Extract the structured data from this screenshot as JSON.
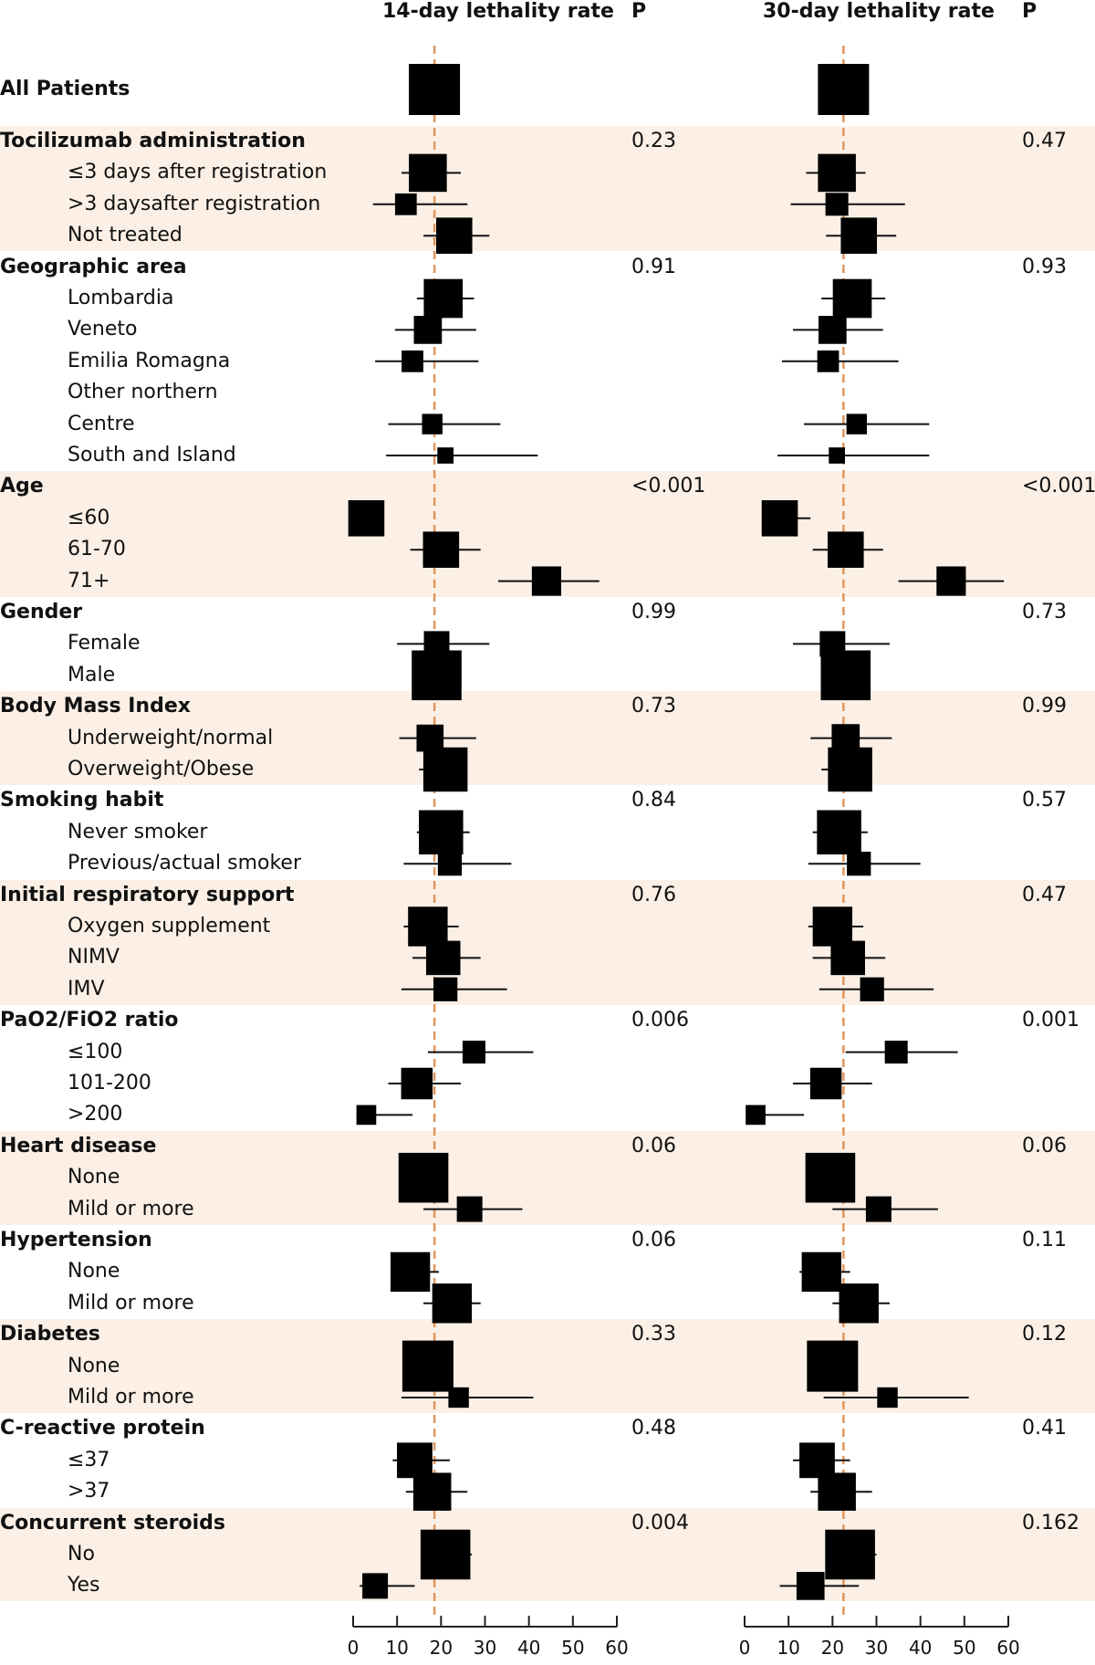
{
  "chart_data": {
    "type": "forest",
    "panels": [
      {
        "title": "14-day lethality rate",
        "p_header": "P",
        "xlim": [
          0,
          60
        ],
        "xticks": [
          0,
          10,
          20,
          30,
          40,
          50,
          60
        ],
        "reference_line": 18.5
      },
      {
        "title": "30-day lethality rate",
        "p_header": "P",
        "xlim": [
          0,
          60
        ],
        "xticks": [
          0,
          10,
          20,
          30,
          40,
          50,
          60
        ],
        "reference_line": 22.5
      }
    ],
    "rows": [
      {
        "label": "All Patients",
        "kind": "header",
        "band": false,
        "est": [
          18.5,
          22.5
        ],
        "lo": [
          18.5,
          22.5
        ],
        "hi": [
          18.5,
          22.5
        ],
        "weight": [
          1.0,
          1.0
        ],
        "p": [
          "",
          ""
        ]
      },
      {
        "label": "Tocilizumab administration",
        "kind": "header",
        "band": true,
        "p": [
          "0.23",
          "0.47"
        ]
      },
      {
        "label": "≤3 days after registration",
        "kind": "sub",
        "band": true,
        "est": [
          17,
          21
        ],
        "lo": [
          11,
          14
        ],
        "hi": [
          24.5,
          27.5
        ],
        "weight": [
          0.55,
          0.55
        ]
      },
      {
        "label": ">3 daysafter registration",
        "kind": "sub",
        "band": true,
        "est": [
          12,
          21
        ],
        "lo": [
          4.5,
          10.5
        ],
        "hi": [
          26,
          36.5
        ],
        "weight": [
          0.18,
          0.2
        ]
      },
      {
        "label": "Not treated",
        "kind": "sub",
        "band": true,
        "est": [
          23,
          26
        ],
        "lo": [
          16,
          18.5
        ],
        "hi": [
          31,
          34.5
        ],
        "weight": [
          0.5,
          0.5
        ]
      },
      {
        "label": "Geographic area",
        "kind": "header",
        "band": false,
        "p": [
          "0.91",
          "0.93"
        ]
      },
      {
        "label": "Lombardia",
        "kind": "sub",
        "band": false,
        "est": [
          20.5,
          24.5
        ],
        "lo": [
          14.5,
          17.5
        ],
        "hi": [
          27.5,
          32
        ],
        "weight": [
          0.58,
          0.58
        ]
      },
      {
        "label": "Veneto",
        "kind": "sub",
        "band": false,
        "est": [
          17,
          20
        ],
        "lo": [
          9.5,
          11
        ],
        "hi": [
          28,
          31.5
        ],
        "weight": [
          0.3,
          0.3
        ]
      },
      {
        "label": "Emilia Romagna",
        "kind": "sub",
        "band": false,
        "est": [
          13.5,
          19
        ],
        "lo": [
          5,
          8.5
        ],
        "hi": [
          28.5,
          35
        ],
        "weight": [
          0.18,
          0.18
        ]
      },
      {
        "label": "Other northern",
        "kind": "sub",
        "band": false,
        "p": [
          "",
          ""
        ]
      },
      {
        "label": "Centre",
        "kind": "sub",
        "band": false,
        "est": [
          18,
          25.5
        ],
        "lo": [
          8,
          13.5
        ],
        "hi": [
          33.5,
          42
        ],
        "weight": [
          0.16,
          0.16
        ]
      },
      {
        "label": "South and Island",
        "kind": "sub",
        "band": false,
        "est": [
          21,
          21
        ],
        "lo": [
          7.5,
          7.5
        ],
        "hi": [
          42,
          42
        ],
        "weight": [
          0.1,
          0.1
        ]
      },
      {
        "label": "Age",
        "kind": "header",
        "band": true,
        "p": [
          "<0.001",
          "<0.001"
        ]
      },
      {
        "label": "≤60",
        "kind": "sub",
        "band": true,
        "est": [
          3,
          8
        ],
        "lo": [
          0,
          4
        ],
        "hi": [
          7,
          15
        ],
        "weight": [
          0.5,
          0.5
        ]
      },
      {
        "label": "61-70",
        "kind": "sub",
        "band": true,
        "est": [
          20,
          23
        ],
        "lo": [
          13,
          15.5
        ],
        "hi": [
          29,
          31.5
        ],
        "weight": [
          0.5,
          0.5
        ]
      },
      {
        "label": "71+",
        "kind": "sub",
        "band": true,
        "est": [
          44,
          47
        ],
        "lo": [
          33,
          35
        ],
        "hi": [
          56,
          59
        ],
        "weight": [
          0.33,
          0.33
        ]
      },
      {
        "label": "Gender",
        "kind": "header",
        "band": false,
        "p": [
          "0.99",
          "0.73"
        ]
      },
      {
        "label": "Female",
        "kind": "sub",
        "band": false,
        "est": [
          19,
          20
        ],
        "lo": [
          10,
          11
        ],
        "hi": [
          31,
          33
        ],
        "weight": [
          0.25,
          0.25
        ]
      },
      {
        "label": "Male",
        "kind": "sub",
        "band": false,
        "est": [
          19,
          23
        ],
        "lo": [
          14,
          18
        ],
        "hi": [
          24.5,
          28.5
        ],
        "weight": [
          0.95,
          0.95
        ]
      },
      {
        "label": "Body Mass Index",
        "kind": "header",
        "band": true,
        "p": [
          "0.73",
          "0.99"
        ]
      },
      {
        "label": "Underweight/normal",
        "kind": "sub",
        "band": true,
        "est": [
          17.5,
          23
        ],
        "lo": [
          10.5,
          15
        ],
        "hi": [
          28,
          33.5
        ],
        "weight": [
          0.28,
          0.3
        ]
      },
      {
        "label": "Overweight/Obese",
        "kind": "sub",
        "band": true,
        "est": [
          21,
          24
        ],
        "lo": [
          15,
          17.5
        ],
        "hi": [
          26,
          29
        ],
        "weight": [
          0.75,
          0.75
        ]
      },
      {
        "label": "Smoking habit",
        "kind": "header",
        "band": false,
        "p": [
          "0.84",
          "0.57"
        ]
      },
      {
        "label": "Never smoker",
        "kind": "sub",
        "band": false,
        "est": [
          20,
          21.5
        ],
        "lo": [
          14.5,
          15.5
        ],
        "hi": [
          26.5,
          28
        ],
        "weight": [
          0.75,
          0.75
        ]
      },
      {
        "label": "Previous/actual smoker",
        "kind": "sub",
        "band": false,
        "est": [
          22,
          26
        ],
        "lo": [
          11.5,
          14.5
        ],
        "hi": [
          36,
          40
        ],
        "weight": [
          0.22,
          0.22
        ]
      },
      {
        "label": "Initial respiratory support",
        "kind": "header",
        "band": true,
        "p": [
          "0.76",
          "0.47"
        ]
      },
      {
        "label": "Oxygen supplement",
        "kind": "sub",
        "band": true,
        "est": [
          17,
          20
        ],
        "lo": [
          11.5,
          14.5
        ],
        "hi": [
          24,
          27
        ],
        "weight": [
          0.6,
          0.6
        ]
      },
      {
        "label": "NIMV",
        "kind": "sub",
        "band": true,
        "est": [
          20.5,
          23.5
        ],
        "lo": [
          13.5,
          15.5
        ],
        "hi": [
          29,
          32
        ],
        "weight": [
          0.45,
          0.45
        ]
      },
      {
        "label": "IMV",
        "kind": "sub",
        "band": true,
        "est": [
          21,
          29
        ],
        "lo": [
          11,
          17
        ],
        "hi": [
          35,
          43
        ],
        "weight": [
          0.22,
          0.22
        ]
      },
      {
        "label": "PaO2/FiO2 ratio",
        "kind": "header",
        "band": false,
        "p": [
          "0.006",
          "0.001"
        ]
      },
      {
        "label": "≤100",
        "kind": "sub",
        "band": false,
        "est": [
          27.5,
          34.5
        ],
        "lo": [
          17,
          23
        ],
        "hi": [
          41,
          48.5
        ],
        "weight": [
          0.2,
          0.2
        ]
      },
      {
        "label": "101-200",
        "kind": "sub",
        "band": false,
        "est": [
          14.5,
          18.5
        ],
        "lo": [
          8,
          11
        ],
        "hi": [
          24.5,
          29
        ],
        "weight": [
          0.38,
          0.38
        ]
      },
      {
        "label": ">200",
        "kind": "sub",
        "band": false,
        "est": [
          3,
          2.5
        ],
        "lo": [
          1,
          1
        ],
        "hi": [
          13.5,
          13.5
        ],
        "weight": [
          0.15,
          0.15
        ]
      },
      {
        "label": "Heart disease",
        "kind": "header",
        "band": true,
        "p": [
          "0.06",
          "0.06"
        ]
      },
      {
        "label": "None",
        "kind": "sub",
        "band": true,
        "est": [
          16,
          19.5
        ],
        "lo": [
          11,
          15
        ],
        "hi": [
          20.5,
          24
        ],
        "weight": [
          0.95,
          0.95
        ]
      },
      {
        "label": "Mild or more",
        "kind": "sub",
        "band": true,
        "est": [
          26.5,
          30.5
        ],
        "lo": [
          16,
          20
        ],
        "hi": [
          38.5,
          44
        ],
        "weight": [
          0.25,
          0.25
        ]
      },
      {
        "label": "Hypertension",
        "kind": "header",
        "band": false,
        "p": [
          "0.06",
          "0.11"
        ]
      },
      {
        "label": "None",
        "kind": "sub",
        "band": false,
        "est": [
          13,
          17.5
        ],
        "lo": [
          9,
          12.5
        ],
        "hi": [
          19.5,
          24
        ],
        "weight": [
          0.6,
          0.6
        ]
      },
      {
        "label": "Mild or more",
        "kind": "sub",
        "band": false,
        "est": [
          22.5,
          26
        ],
        "lo": [
          16,
          20
        ],
        "hi": [
          29,
          33
        ],
        "weight": [
          0.6,
          0.6
        ]
      },
      {
        "label": "Diabetes",
        "kind": "header",
        "band": true,
        "p": [
          "0.33",
          "0.12"
        ]
      },
      {
        "label": "None",
        "kind": "sub",
        "band": true,
        "est": [
          17,
          20
        ],
        "lo": [
          12,
          15
        ],
        "hi": [
          21.5,
          25
        ],
        "weight": [
          1.0,
          1.0
        ]
      },
      {
        "label": "Mild or more",
        "kind": "sub",
        "band": true,
        "est": [
          24,
          32.5
        ],
        "lo": [
          11,
          18
        ],
        "hi": [
          41,
          51
        ],
        "weight": [
          0.16,
          0.16
        ]
      },
      {
        "label": "C-reactive protein",
        "kind": "header",
        "band": false,
        "p": [
          "0.48",
          "0.41"
        ]
      },
      {
        "label": "≤37",
        "kind": "sub",
        "band": false,
        "est": [
          14,
          16.5
        ],
        "lo": [
          9,
          11
        ],
        "hi": [
          22,
          24
        ],
        "weight": [
          0.48,
          0.48
        ]
      },
      {
        "label": ">37",
        "kind": "sub",
        "band": false,
        "est": [
          18,
          21
        ],
        "lo": [
          12,
          15
        ],
        "hi": [
          26,
          29
        ],
        "weight": [
          0.55,
          0.55
        ]
      },
      {
        "label": "Concurrent steroids",
        "kind": "header",
        "band": true,
        "p": [
          "0.004",
          "0.162"
        ]
      },
      {
        "label": "No",
        "kind": "sub",
        "band": true,
        "est": [
          21,
          24
        ],
        "lo": [
          17,
          19.5
        ],
        "hi": [
          27,
          30
        ],
        "weight": [
          0.95,
          0.95
        ]
      },
      {
        "label": "Yes",
        "kind": "sub",
        "band": true,
        "est": [
          5,
          15
        ],
        "lo": [
          1.5,
          8
        ],
        "hi": [
          14,
          26
        ],
        "weight": [
          0.25,
          0.3
        ]
      }
    ]
  }
}
